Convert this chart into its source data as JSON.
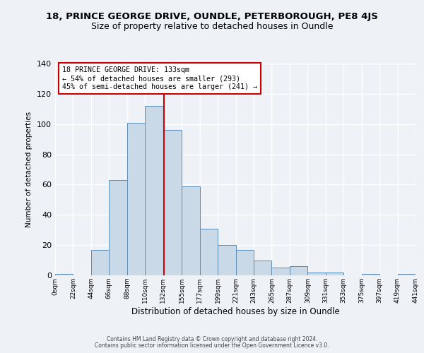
{
  "title_main": "18, PRINCE GEORGE DRIVE, OUNDLE, PETERBOROUGH, PE8 4JS",
  "title_sub": "Size of property relative to detached houses in Oundle",
  "xlabel": "Distribution of detached houses by size in Oundle",
  "ylabel": "Number of detached properties",
  "bar_edges": [
    0,
    22,
    44,
    66,
    88,
    110,
    132,
    155,
    177,
    199,
    221,
    243,
    265,
    287,
    309,
    331,
    353,
    375,
    397,
    419,
    441
  ],
  "bar_heights": [
    1,
    0,
    17,
    63,
    101,
    112,
    96,
    59,
    31,
    20,
    17,
    10,
    5,
    6,
    2,
    2,
    0,
    1,
    0,
    1
  ],
  "bar_color": "#c9d9e8",
  "bar_edge_color": "#5b8db8",
  "property_line_x": 133,
  "property_line_color": "#cc0000",
  "annotation_line1": "18 PRINCE GEORGE DRIVE: 133sqm",
  "annotation_line2": "← 54% of detached houses are smaller (293)",
  "annotation_line3": "45% of semi-detached houses are larger (241) →",
  "annotation_box_color": "#cc0000",
  "ylim": [
    0,
    140
  ],
  "yticks": [
    0,
    20,
    40,
    60,
    80,
    100,
    120,
    140
  ],
  "tick_labels": [
    "0sqm",
    "22sqm",
    "44sqm",
    "66sqm",
    "88sqm",
    "110sqm",
    "132sqm",
    "155sqm",
    "177sqm",
    "199sqm",
    "221sqm",
    "243sqm",
    "265sqm",
    "287sqm",
    "309sqm",
    "331sqm",
    "353sqm",
    "375sqm",
    "397sqm",
    "419sqm",
    "441sqm"
  ],
  "footer1": "Contains HM Land Registry data © Crown copyright and database right 2024.",
  "footer2": "Contains public sector information licensed under the Open Government Licence v3.0.",
  "background_color": "#eef2f7",
  "grid_color": "#ffffff",
  "title_fontsize": 9.5,
  "subtitle_fontsize": 9
}
